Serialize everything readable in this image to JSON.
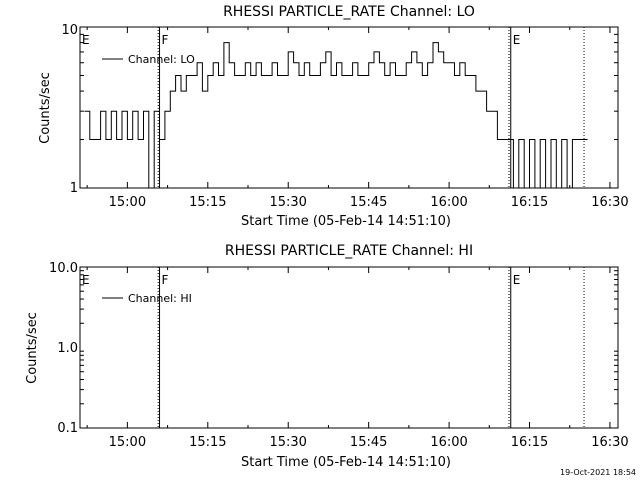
{
  "footer_timestamp": "19-Oct-2021 18:54",
  "colors": {
    "background": "#ffffff",
    "foreground": "#000000"
  },
  "chart_data": [
    {
      "type": "line",
      "title": "RHESSI PARTICLE_RATE Channel: LO",
      "xlabel": "Start Time (05-Feb-14 14:51:10)",
      "ylabel": "Counts/sec",
      "y_scale": "log",
      "xlim": [
        "14:51:10",
        "16:31:30"
      ],
      "ylim": [
        1,
        10
      ],
      "x_tick_labels": [
        "15:00",
        "15:15",
        "15:30",
        "15:45",
        "16:00",
        "16:15",
        "16:30"
      ],
      "y_tick_labels": [
        "1",
        "10"
      ],
      "legend": {
        "entries": [
          "Channel: LO"
        ],
        "placement": "top-left"
      },
      "markers": [
        {
          "time": "14:51:10",
          "label": "E",
          "style": "none"
        },
        {
          "time": "15:06:00",
          "label": "F",
          "style": "solid"
        },
        {
          "time": "16:11:30",
          "label": "E",
          "style": "solid"
        }
      ],
      "dotted_lines": [
        "15:05:45",
        "16:11:10",
        "16:25:10"
      ],
      "series": [
        {
          "name": "Channel: LO",
          "x": [
            "14:52",
            "14:53",
            "14:54",
            "14:55",
            "14:56",
            "14:57",
            "14:58",
            "14:59",
            "15:00",
            "15:01",
            "15:02",
            "15:03",
            "15:04",
            "15:05",
            "15:06",
            "15:07",
            "15:08",
            "15:09",
            "15:10",
            "15:11",
            "15:12",
            "15:13",
            "15:14",
            "15:15",
            "15:16",
            "15:17",
            "15:18",
            "15:19",
            "15:20",
            "15:21",
            "15:22",
            "15:23",
            "15:24",
            "15:25",
            "15:26",
            "15:27",
            "15:28",
            "15:29",
            "15:30",
            "15:31",
            "15:32",
            "15:33",
            "15:34",
            "15:35",
            "15:36",
            "15:37",
            "15:38",
            "15:39",
            "15:40",
            "15:41",
            "15:42",
            "15:43",
            "15:44",
            "15:45",
            "15:46",
            "15:47",
            "15:48",
            "15:49",
            "15:50",
            "15:51",
            "15:52",
            "15:53",
            "15:54",
            "15:55",
            "15:56",
            "15:57",
            "15:58",
            "15:59",
            "16:00",
            "16:01",
            "16:02",
            "16:03",
            "16:04",
            "16:05",
            "16:06",
            "16:07",
            "16:08",
            "16:09",
            "16:10",
            "16:11",
            "16:12",
            "16:13",
            "16:14",
            "16:15",
            "16:16",
            "16:17",
            "16:18",
            "16:19",
            "16:20",
            "16:21",
            "16:22",
            "16:23",
            "16:24",
            "16:25"
          ],
          "y": [
            3,
            2,
            2,
            3,
            2,
            3,
            2,
            3,
            2,
            3,
            2,
            3,
            1,
            3,
            2,
            3,
            4,
            5,
            4,
            5,
            5,
            6,
            4,
            5,
            6,
            5,
            8,
            6,
            5,
            5,
            6,
            5,
            6,
            5,
            5,
            6,
            5,
            5,
            7,
            6,
            5,
            6,
            5,
            5,
            6,
            7,
            5,
            6,
            5,
            5,
            6,
            5,
            5,
            6,
            7,
            6,
            5,
            6,
            5,
            5,
            6,
            7,
            6,
            5,
            6,
            8,
            7,
            6,
            6,
            5,
            6,
            5,
            5,
            4,
            4,
            3,
            3,
            2,
            2,
            2,
            1,
            2,
            1,
            2,
            1,
            2,
            1,
            2,
            1,
            2,
            1,
            2,
            2,
            2
          ]
        }
      ]
    },
    {
      "type": "line",
      "title": "RHESSI PARTICLE_RATE Channel: HI",
      "xlabel": "Start Time (05-Feb-14 14:51:10)",
      "ylabel": "Counts/sec",
      "y_scale": "log",
      "xlim": [
        "14:51:10",
        "16:31:30"
      ],
      "ylim": [
        0.1,
        10
      ],
      "x_tick_labels": [
        "15:00",
        "15:15",
        "15:30",
        "15:45",
        "16:00",
        "16:15",
        "16:30"
      ],
      "y_tick_labels": [
        "0.1",
        "1.0",
        "10.0"
      ],
      "legend": {
        "entries": [
          "Channel: HI"
        ],
        "placement": "top-left"
      },
      "markers": [
        {
          "time": "14:51:10",
          "label": "E",
          "style": "none"
        },
        {
          "time": "15:06:00",
          "label": "F",
          "style": "solid"
        },
        {
          "time": "16:11:30",
          "label": "E",
          "style": "solid"
        }
      ],
      "dotted_lines": [
        "15:05:45",
        "16:11:10",
        "16:25:10"
      ],
      "series": [
        {
          "name": "Channel: HI",
          "x": [],
          "y": []
        }
      ]
    }
  ]
}
